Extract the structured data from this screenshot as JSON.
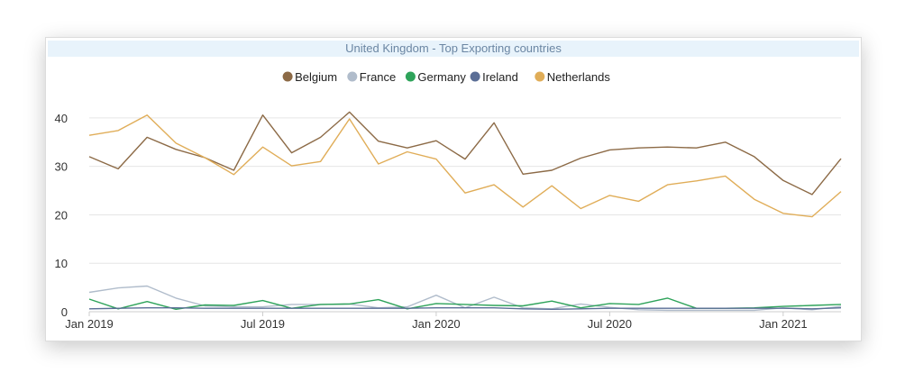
{
  "chart_data": {
    "type": "line",
    "title": "United Kingdom - Top Exporting countries",
    "legend_placement": "top-center",
    "grid": true,
    "ylim": [
      0,
      45
    ],
    "y_ticks": [
      0,
      10,
      20,
      30,
      40
    ],
    "x_ticks": [
      "Jan 2019",
      "Jul 2019",
      "Jan 2020",
      "Jul 2020",
      "Jan 2021"
    ],
    "x_tick_indices": [
      0,
      6,
      12,
      18,
      24
    ],
    "x": [
      "2019-01",
      "2019-02",
      "2019-03",
      "2019-04",
      "2019-05",
      "2019-06",
      "2019-07",
      "2019-08",
      "2019-09",
      "2019-10",
      "2019-11",
      "2019-12",
      "2020-01",
      "2020-02",
      "2020-03",
      "2020-04",
      "2020-05",
      "2020-06",
      "2020-07",
      "2020-08",
      "2020-09",
      "2020-10",
      "2020-11",
      "2020-12",
      "2021-01",
      "2021-02",
      "2021-03"
    ],
    "series": [
      {
        "name": "Belgium",
        "color": "#8c6a46",
        "values": [
          32.0,
          29.5,
          36.0,
          33.5,
          31.8,
          29.2,
          40.6,
          32.8,
          36.0,
          41.2,
          35.2,
          33.8,
          35.3,
          31.5,
          39.0,
          28.4,
          29.2,
          31.7,
          33.4,
          33.8,
          34.0,
          33.8,
          35.0,
          32.0,
          27.1,
          24.2,
          31.6
        ]
      },
      {
        "name": "France",
        "color": "#b0bccb",
        "values": [
          4.0,
          4.9,
          5.3,
          2.8,
          1.2,
          1.0,
          1.0,
          1.5,
          1.5,
          1.6,
          0.8,
          1.0,
          3.4,
          0.8,
          3.0,
          0.8,
          0.6,
          1.6,
          0.9,
          0.4,
          0.3,
          0.3,
          0.3,
          0.3,
          0.8,
          0.4,
          1.1
        ]
      },
      {
        "name": "Germany",
        "color": "#2ea35a",
        "values": [
          2.6,
          0.6,
          2.1,
          0.5,
          1.4,
          1.3,
          2.3,
          0.7,
          1.5,
          1.6,
          2.5,
          0.6,
          1.7,
          1.5,
          1.3,
          1.2,
          2.2,
          0.8,
          1.7,
          1.5,
          2.8,
          0.7,
          0.7,
          0.8,
          1.1,
          1.3,
          1.5
        ]
      },
      {
        "name": "Ireland",
        "color": "#5b6e96",
        "values": [
          0.6,
          0.7,
          0.8,
          0.8,
          0.7,
          0.7,
          0.7,
          0.7,
          0.7,
          0.7,
          0.7,
          0.7,
          0.8,
          0.8,
          0.8,
          0.6,
          0.5,
          0.6,
          0.7,
          0.7,
          0.7,
          0.7,
          0.7,
          0.7,
          0.7,
          0.6,
          0.8
        ]
      },
      {
        "name": "Netherlands",
        "color": "#e0ad58",
        "values": [
          36.4,
          37.4,
          40.6,
          34.8,
          31.8,
          28.3,
          34.0,
          30.1,
          31.0,
          39.8,
          30.5,
          33.0,
          31.5,
          24.5,
          26.2,
          21.6,
          26.0,
          21.3,
          24.0,
          22.8,
          26.2,
          27.0,
          28.0,
          23.2,
          20.3,
          19.6,
          24.8
        ]
      }
    ]
  }
}
